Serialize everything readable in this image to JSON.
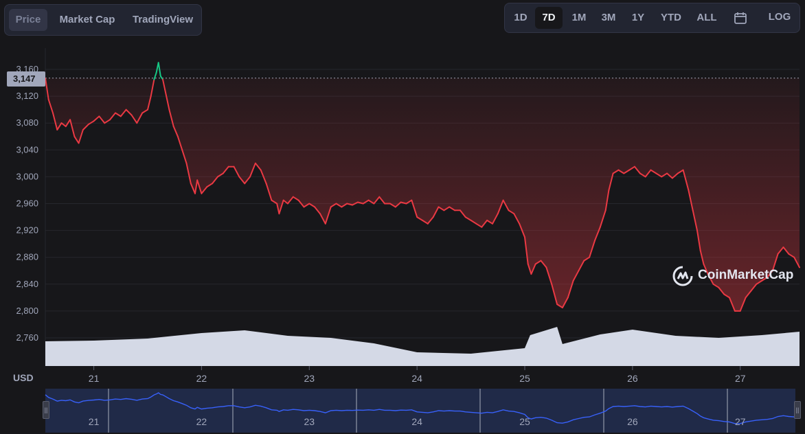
{
  "tabs": {
    "items": [
      "Price",
      "Market Cap",
      "TradingView"
    ],
    "active": "Price"
  },
  "ranges": {
    "items": [
      "1D",
      "7D",
      "1M",
      "3M",
      "1Y",
      "YTD",
      "ALL"
    ],
    "active": "7D",
    "log_label": "LOG",
    "calendar_icon": "calendar-icon"
  },
  "current_price_label": "3,147",
  "currency_label": "USD",
  "watermark": {
    "text": "CoinMarketCap",
    "icon": "coinmarketcap-logo-icon"
  },
  "colors": {
    "down": "#ea3943",
    "up": "#16c784",
    "volume": "#d4d9e6",
    "navigator_line": "#3861fb",
    "background": "#17171a"
  },
  "chart_data": {
    "type": "line",
    "y_ticks": [
      "3,160",
      "3,120",
      "3,080",
      "3,040",
      "3,000",
      "2,960",
      "2,920",
      "2,880",
      "2,840",
      "2,800",
      "2,760"
    ],
    "y_tick_values": [
      3160,
      3120,
      3080,
      3040,
      3000,
      2960,
      2920,
      2880,
      2840,
      2800,
      2760
    ],
    "x_ticks": [
      "21",
      "22",
      "23",
      "24",
      "25",
      "26",
      "27"
    ],
    "x_tick_values": [
      21,
      22,
      23,
      24,
      25,
      26,
      27
    ],
    "ylim": [
      2745,
      3170
    ],
    "xlim": [
      20.55,
      27.55
    ],
    "reference_value": 3147,
    "series": [
      {
        "values": [
          [
            20.55,
            3147
          ],
          [
            20.58,
            3115
          ],
          [
            20.62,
            3095
          ],
          [
            20.66,
            3070
          ],
          [
            20.7,
            3080
          ],
          [
            20.74,
            3075
          ],
          [
            20.78,
            3085
          ],
          [
            20.82,
            3060
          ],
          [
            20.86,
            3050
          ],
          [
            20.9,
            3070
          ],
          [
            20.95,
            3078
          ],
          [
            21.0,
            3083
          ],
          [
            21.05,
            3090
          ],
          [
            21.1,
            3080
          ],
          [
            21.15,
            3085
          ],
          [
            21.2,
            3095
          ],
          [
            21.25,
            3090
          ],
          [
            21.3,
            3100
          ],
          [
            21.35,
            3092
          ],
          [
            21.4,
            3080
          ],
          [
            21.45,
            3095
          ],
          [
            21.5,
            3100
          ],
          [
            21.53,
            3120
          ],
          [
            21.56,
            3145
          ],
          [
            21.58,
            3155
          ],
          [
            21.6,
            3170
          ],
          [
            21.62,
            3150
          ],
          [
            21.64,
            3145
          ],
          [
            21.66,
            3130
          ],
          [
            21.7,
            3100
          ],
          [
            21.74,
            3075
          ],
          [
            21.78,
            3060
          ],
          [
            21.82,
            3040
          ],
          [
            21.86,
            3020
          ],
          [
            21.9,
            2990
          ],
          [
            21.94,
            2975
          ],
          [
            21.96,
            2995
          ],
          [
            22.0,
            2975
          ],
          [
            22.05,
            2985
          ],
          [
            22.1,
            2990
          ],
          [
            22.15,
            3000
          ],
          [
            22.2,
            3005
          ],
          [
            22.25,
            3015
          ],
          [
            22.3,
            3015
          ],
          [
            22.35,
            3000
          ],
          [
            22.4,
            2990
          ],
          [
            22.45,
            3000
          ],
          [
            22.5,
            3020
          ],
          [
            22.55,
            3010
          ],
          [
            22.6,
            2990
          ],
          [
            22.65,
            2965
          ],
          [
            22.7,
            2960
          ],
          [
            22.72,
            2945
          ],
          [
            22.76,
            2965
          ],
          [
            22.8,
            2960
          ],
          [
            22.85,
            2970
          ],
          [
            22.9,
            2965
          ],
          [
            22.95,
            2955
          ],
          [
            23.0,
            2960
          ],
          [
            23.05,
            2955
          ],
          [
            23.1,
            2945
          ],
          [
            23.15,
            2930
          ],
          [
            23.2,
            2955
          ],
          [
            23.25,
            2960
          ],
          [
            23.3,
            2955
          ],
          [
            23.35,
            2960
          ],
          [
            23.4,
            2958
          ],
          [
            23.45,
            2962
          ],
          [
            23.5,
            2960
          ],
          [
            23.55,
            2965
          ],
          [
            23.6,
            2960
          ],
          [
            23.65,
            2970
          ],
          [
            23.7,
            2960
          ],
          [
            23.75,
            2960
          ],
          [
            23.8,
            2955
          ],
          [
            23.85,
            2962
          ],
          [
            23.9,
            2960
          ],
          [
            23.95,
            2965
          ],
          [
            24.0,
            2940
          ],
          [
            24.05,
            2935
          ],
          [
            24.1,
            2930
          ],
          [
            24.15,
            2940
          ],
          [
            24.2,
            2955
          ],
          [
            24.25,
            2950
          ],
          [
            24.3,
            2955
          ],
          [
            24.35,
            2950
          ],
          [
            24.4,
            2950
          ],
          [
            24.45,
            2940
          ],
          [
            24.5,
            2935
          ],
          [
            24.55,
            2930
          ],
          [
            24.6,
            2925
          ],
          [
            24.65,
            2935
          ],
          [
            24.7,
            2930
          ],
          [
            24.75,
            2945
          ],
          [
            24.8,
            2965
          ],
          [
            24.85,
            2950
          ],
          [
            24.9,
            2945
          ],
          [
            24.95,
            2930
          ],
          [
            25.0,
            2910
          ],
          [
            25.03,
            2870
          ],
          [
            25.06,
            2855
          ],
          [
            25.1,
            2870
          ],
          [
            25.15,
            2875
          ],
          [
            25.2,
            2865
          ],
          [
            25.25,
            2840
          ],
          [
            25.3,
            2810
          ],
          [
            25.35,
            2805
          ],
          [
            25.4,
            2820
          ],
          [
            25.45,
            2845
          ],
          [
            25.5,
            2860
          ],
          [
            25.55,
            2875
          ],
          [
            25.6,
            2880
          ],
          [
            25.65,
            2905
          ],
          [
            25.7,
            2925
          ],
          [
            25.75,
            2950
          ],
          [
            25.78,
            2980
          ],
          [
            25.82,
            3005
          ],
          [
            25.87,
            3010
          ],
          [
            25.92,
            3005
          ],
          [
            25.97,
            3010
          ],
          [
            26.02,
            3015
          ],
          [
            26.07,
            3005
          ],
          [
            26.12,
            3000
          ],
          [
            26.17,
            3010
          ],
          [
            26.22,
            3005
          ],
          [
            26.27,
            3000
          ],
          [
            26.32,
            3005
          ],
          [
            26.37,
            2998
          ],
          [
            26.42,
            3005
          ],
          [
            26.47,
            3010
          ],
          [
            26.52,
            2980
          ],
          [
            26.56,
            2950
          ],
          [
            26.6,
            2920
          ],
          [
            26.63,
            2890
          ],
          [
            26.66,
            2870
          ],
          [
            26.7,
            2855
          ],
          [
            26.75,
            2840
          ],
          [
            26.8,
            2835
          ],
          [
            26.85,
            2825
          ],
          [
            26.9,
            2820
          ],
          [
            26.95,
            2800
          ],
          [
            27.0,
            2800
          ],
          [
            27.05,
            2820
          ],
          [
            27.1,
            2830
          ],
          [
            27.15,
            2840
          ],
          [
            27.2,
            2845
          ],
          [
            27.25,
            2850
          ],
          [
            27.3,
            2860
          ],
          [
            27.35,
            2885
          ],
          [
            27.4,
            2895
          ],
          [
            27.45,
            2885
          ],
          [
            27.5,
            2880
          ],
          [
            27.55,
            2865
          ]
        ]
      }
    ],
    "volume": [
      [
        20.55,
        0.36
      ],
      [
        21.0,
        0.37
      ],
      [
        21.5,
        0.4
      ],
      [
        22.0,
        0.48
      ],
      [
        22.4,
        0.52
      ],
      [
        22.8,
        0.44
      ],
      [
        23.2,
        0.41
      ],
      [
        23.6,
        0.33
      ],
      [
        24.0,
        0.2
      ],
      [
        24.5,
        0.18
      ],
      [
        25.0,
        0.26
      ],
      [
        25.05,
        0.45
      ],
      [
        25.3,
        0.57
      ],
      [
        25.35,
        0.32
      ],
      [
        25.7,
        0.46
      ],
      [
        26.0,
        0.53
      ],
      [
        26.4,
        0.44
      ],
      [
        26.8,
        0.41
      ],
      [
        27.2,
        0.45
      ],
      [
        27.55,
        0.5
      ]
    ]
  }
}
